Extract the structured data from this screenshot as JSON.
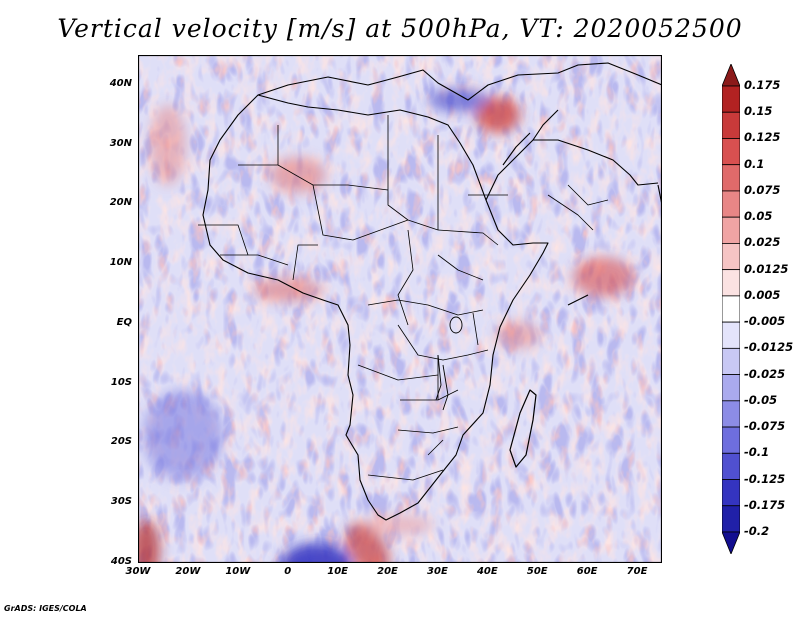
{
  "title": "Vertical velocity [m/s] at 500hPa, VT: 2020052500",
  "credit": "GrADS: IGES/COLA",
  "map": {
    "projection": "latlon",
    "lon_range": [
      -30,
      75
    ],
    "lat_range": [
      -40,
      45
    ],
    "lat_labels": [
      "40N",
      "30N",
      "20N",
      "10N",
      "EQ",
      "10S",
      "20S",
      "30S",
      "40S"
    ],
    "lat_values": [
      40,
      30,
      20,
      10,
      0,
      -10,
      -20,
      -30,
      -40
    ],
    "lon_labels": [
      "30W",
      "20W",
      "10W",
      "0",
      "10E",
      "20E",
      "30E",
      "40E",
      "50E",
      "60E",
      "70E"
    ],
    "lon_values": [
      -30,
      -20,
      -10,
      0,
      10,
      20,
      30,
      40,
      50,
      60,
      70
    ]
  },
  "colorbar": {
    "levels": [
      "0.175",
      "0.15",
      "0.125",
      "0.1",
      "0.075",
      "0.05",
      "0.025",
      "0.0125",
      "0.005",
      "-0.005",
      "-0.0125",
      "-0.025",
      "-0.05",
      "-0.075",
      "-0.1",
      "-0.125",
      "-0.175",
      "-0.2"
    ],
    "colors": [
      "#8b1a1a",
      "#b22222",
      "#c83a3a",
      "#d85050",
      "#e06a6a",
      "#e88686",
      "#f0a4a4",
      "#f6c4c4",
      "#fbe2e2",
      "#ffffff",
      "#e4e4fb",
      "#c8c8f4",
      "#aaaaee",
      "#8c8ce6",
      "#6e6ede",
      "#5050d0",
      "#3434c0",
      "#2020a8",
      "#120e90"
    ]
  }
}
